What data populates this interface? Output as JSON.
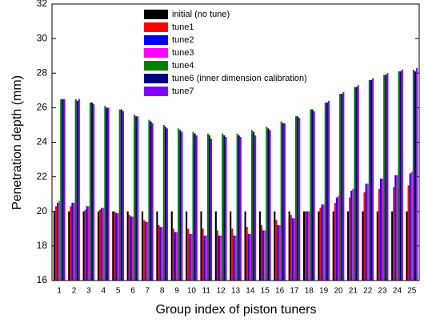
{
  "chart_data": {
    "type": "bar",
    "x_label": "Group index of piston tuners",
    "y_label": "Penetration depth (mm)",
    "categories": [
      "1",
      "2",
      "3",
      "4",
      "5",
      "6",
      "7",
      "8",
      "9",
      "10",
      "11",
      "12",
      "13",
      "14",
      "15",
      "16",
      "17",
      "18",
      "19",
      "20",
      "21",
      "22",
      "23",
      "24",
      "25"
    ],
    "ylim": [
      16,
      32
    ],
    "yticks": [
      16,
      18,
      20,
      22,
      24,
      26,
      28,
      30,
      32
    ],
    "legend": "upper left",
    "series": [
      {
        "name": "initial (no tune)",
        "color": "#000000",
        "values": [
          20,
          20,
          20,
          20,
          20,
          20,
          20,
          20,
          20,
          20,
          20,
          20,
          20,
          20,
          20,
          20,
          20,
          20,
          20,
          20,
          20,
          20,
          20,
          20,
          20
        ]
      },
      {
        "name": "tune1",
        "color": "#ff0000",
        "values": [
          20.3,
          20.3,
          20.1,
          20.1,
          20.0,
          19.8,
          19.5,
          19.2,
          19.0,
          19.0,
          19.0,
          18.9,
          19.0,
          19.1,
          19.2,
          19.5,
          19.8,
          20.0,
          20.2,
          20.5,
          20.8,
          21.1,
          21.3,
          21.4,
          21.5
        ]
      },
      {
        "name": "tune2",
        "color": "#0000ff",
        "values": [
          20.5,
          20.5,
          20.3,
          20.2,
          19.9,
          19.7,
          19.4,
          19.1,
          18.8,
          18.7,
          18.6,
          18.6,
          18.6,
          18.7,
          18.9,
          19.2,
          19.6,
          20.0,
          20.4,
          20.8,
          21.2,
          21.6,
          21.9,
          22.1,
          22.2
        ]
      },
      {
        "name": "tune3",
        "color": "#ff00ff",
        "values": [
          20.6,
          20.5,
          20.3,
          20.2,
          19.9,
          19.7,
          19.4,
          19.1,
          18.8,
          18.7,
          18.6,
          18.6,
          18.6,
          18.7,
          18.9,
          19.2,
          19.6,
          20.0,
          20.4,
          20.9,
          21.3,
          21.6,
          21.9,
          22.1,
          22.3
        ]
      },
      {
        "name": "tune4",
        "color": "#008000",
        "values": [
          26.5,
          26.5,
          26.3,
          26.1,
          25.9,
          25.6,
          25.3,
          25.0,
          24.8,
          24.6,
          24.5,
          24.5,
          24.5,
          24.7,
          24.9,
          25.2,
          25.5,
          25.9,
          26.3,
          26.8,
          27.2,
          27.6,
          27.9,
          28.1,
          28.2
        ]
      },
      {
        "name": "tune6 (inner dimension calibration)",
        "color": "#000080",
        "values": [
          26.5,
          26.4,
          26.3,
          26.0,
          25.9,
          25.5,
          25.2,
          24.9,
          24.7,
          24.5,
          24.4,
          24.4,
          24.4,
          24.6,
          24.8,
          25.1,
          25.5,
          25.9,
          26.3,
          26.8,
          27.2,
          27.6,
          27.9,
          28.1,
          28.1
        ]
      },
      {
        "name": "tune7",
        "color": "#8000ff",
        "values": [
          26.5,
          26.5,
          26.2,
          26.0,
          25.8,
          25.5,
          25.1,
          24.8,
          24.6,
          24.4,
          24.2,
          24.3,
          24.3,
          24.4,
          24.7,
          25.1,
          25.4,
          25.8,
          26.4,
          26.9,
          27.3,
          27.7,
          28.0,
          28.2,
          28.3
        ]
      }
    ]
  }
}
